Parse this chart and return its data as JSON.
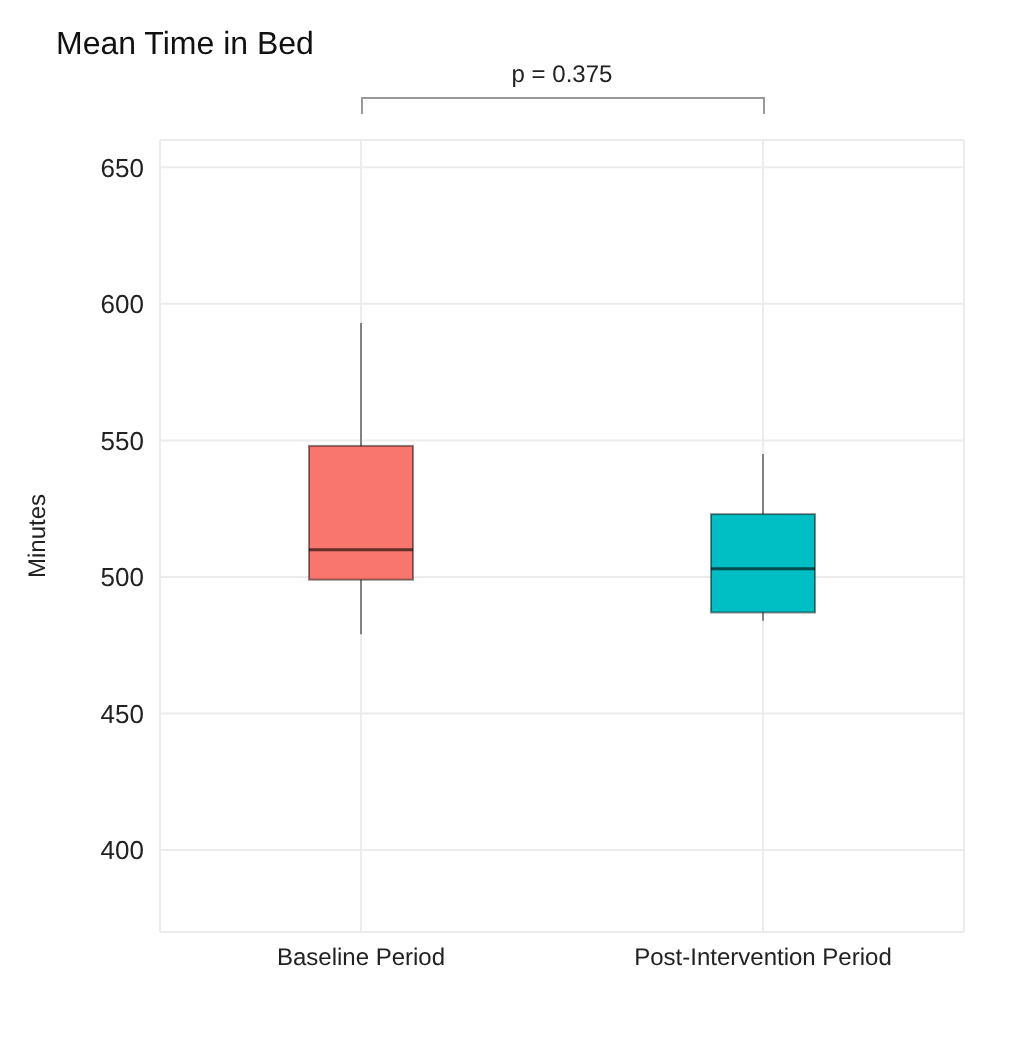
{
  "chart_data": {
    "type": "box",
    "title": "Mean Time in Bed",
    "ylabel": "Minutes",
    "annotations": [
      "p = 0.375"
    ],
    "categories": [
      "Baseline Period",
      "Post-Intervention Period"
    ],
    "colors": [
      "#f8766d",
      "#00bfc4"
    ],
    "boxes": [
      {
        "low": 479,
        "q1": 499,
        "median": 510,
        "q3": 548,
        "high": 593
      },
      {
        "low": 484,
        "q1": 487,
        "median": 503,
        "q3": 523,
        "high": 545
      }
    ],
    "ylim": [
      370,
      660
    ],
    "yticks": [
      400,
      450,
      500,
      550,
      600,
      650
    ],
    "grid": true
  }
}
